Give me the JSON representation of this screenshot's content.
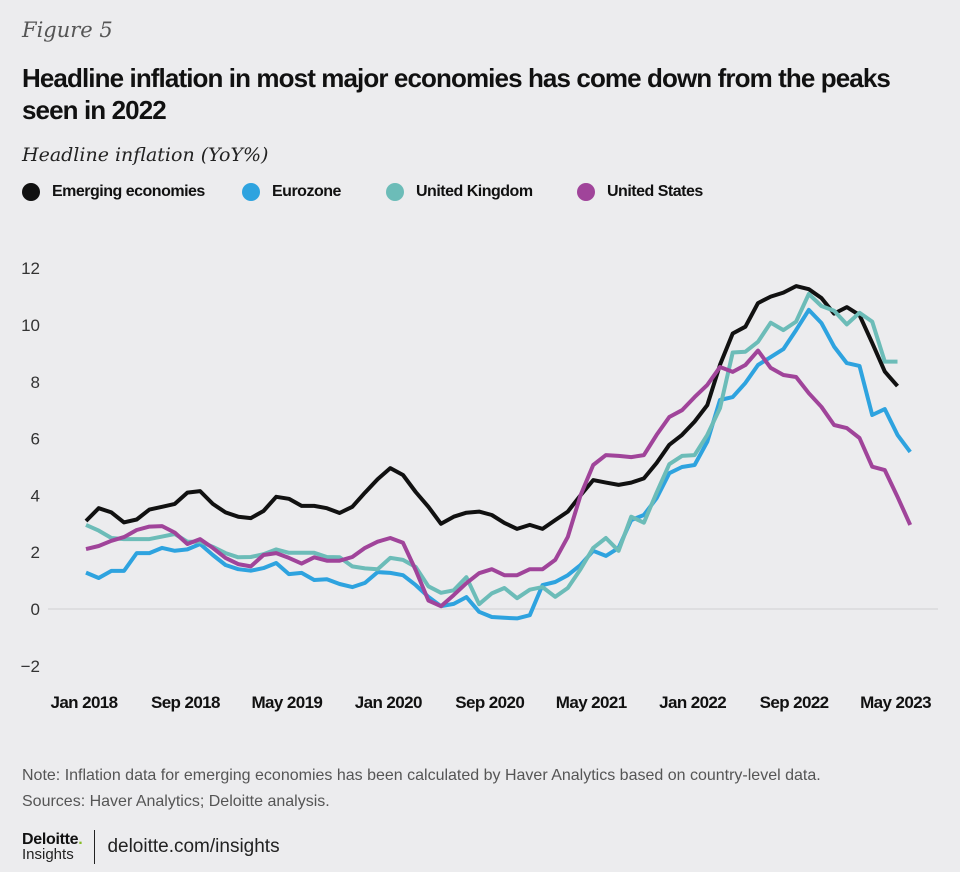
{
  "figure_label": "Figure 5",
  "title": "Headline inflation in most major economies has come down from the peaks seen in 2022",
  "subtitle": "Headline inflation (YoY%)",
  "note": "Note: Inflation data for emerging economies has been calculated by Haver Analytics based on country-level data.",
  "sources": "Sources: Haver Analytics; Deloitte analysis.",
  "footer": {
    "brand_name": "Deloitte",
    "brand_dot": ".",
    "brand_sub": "Insights",
    "url": "deloitte.com/insights"
  },
  "chart_data": {
    "type": "line",
    "title": "Headline inflation in most major economies has come down from the peaks seen in 2022",
    "ylabel": "Headline inflation (YoY%)",
    "xlabel": "",
    "ylim": [
      -2,
      12
    ],
    "yticks": [
      12,
      10,
      8,
      6,
      4,
      2,
      0,
      -2
    ],
    "x_start": "Jan 2018",
    "x_frequency": "monthly",
    "xtick_labels": [
      "Jan 2018",
      "Sep 2018",
      "May 2019",
      "Jan 2020",
      "Sep 2020",
      "May 2021",
      "Jan 2022",
      "Sep 2022",
      "May 2023"
    ],
    "xtick_month_index": [
      0,
      8,
      16,
      24,
      32,
      40,
      48,
      56,
      64
    ],
    "grid": false,
    "zero_line": true,
    "legend_position": "top-left",
    "series": [
      {
        "name": "Emerging economies",
        "color": "#111111",
        "values": [
          3.1,
          3.55,
          3.4,
          3.05,
          3.15,
          3.5,
          3.6,
          3.7,
          4.1,
          4.15,
          3.7,
          3.4,
          3.25,
          3.2,
          3.45,
          3.95,
          3.88,
          3.63,
          3.63,
          3.55,
          3.38,
          3.6,
          4.1,
          4.57,
          4.96,
          4.72,
          4.12,
          3.6,
          3.0,
          3.25,
          3.39,
          3.43,
          3.31,
          3.03,
          2.82,
          2.96,
          2.82,
          3.13,
          3.43,
          4.0,
          4.54,
          4.45,
          4.37,
          4.45,
          4.6,
          5.14,
          5.78,
          6.13,
          6.6,
          7.18,
          8.6,
          9.7,
          9.94,
          10.77,
          11.0,
          11.14,
          11.37,
          11.26,
          10.95,
          10.4,
          10.63,
          10.35,
          9.37,
          8.36,
          7.85
        ]
      },
      {
        "name": "Eurozone",
        "color": "#2ea3df",
        "values": [
          1.28,
          1.09,
          1.34,
          1.34,
          1.97,
          1.97,
          2.15,
          2.05,
          2.1,
          2.29,
          1.9,
          1.55,
          1.4,
          1.35,
          1.44,
          1.62,
          1.23,
          1.27,
          1.02,
          1.05,
          0.88,
          0.77,
          0.92,
          1.3,
          1.27,
          1.19,
          0.84,
          0.43,
          0.1,
          0.18,
          0.42,
          -0.1,
          -0.28,
          -0.31,
          -0.33,
          -0.22,
          0.84,
          0.95,
          1.19,
          1.55,
          2.05,
          1.87,
          2.15,
          3.13,
          3.31,
          3.9,
          4.78,
          5.0,
          5.07,
          5.89,
          7.36,
          7.46,
          7.96,
          8.59,
          8.87,
          9.15,
          9.82,
          10.53,
          10.07,
          9.24,
          8.66,
          8.56,
          6.83,
          7.04,
          6.13,
          5.53
        ]
      },
      {
        "name": "United Kingdom",
        "color": "#6cbcb8",
        "values": [
          2.96,
          2.76,
          2.5,
          2.46,
          2.46,
          2.46,
          2.55,
          2.64,
          2.37,
          2.37,
          2.19,
          1.97,
          1.82,
          1.83,
          1.93,
          2.1,
          1.98,
          1.98,
          1.98,
          1.83,
          1.82,
          1.5,
          1.43,
          1.4,
          1.8,
          1.73,
          1.48,
          0.8,
          0.57,
          0.66,
          1.12,
          0.17,
          0.55,
          0.74,
          0.38,
          0.68,
          0.77,
          0.43,
          0.74,
          1.4,
          2.15,
          2.5,
          2.05,
          3.25,
          3.04,
          4.1,
          5.1,
          5.39,
          5.42,
          6.13,
          7.07,
          9.03,
          9.06,
          9.41,
          10.08,
          9.82,
          10.12,
          11.09,
          10.67,
          10.5,
          10.02,
          10.43,
          10.12,
          8.71,
          8.71
        ]
      },
      {
        "name": "United States",
        "color": "#a0449a",
        "values": [
          2.11,
          2.22,
          2.4,
          2.53,
          2.78,
          2.9,
          2.92,
          2.69,
          2.29,
          2.46,
          2.15,
          1.8,
          1.58,
          1.5,
          1.9,
          1.97,
          1.8,
          1.6,
          1.82,
          1.7,
          1.7,
          1.83,
          2.15,
          2.37,
          2.5,
          2.33,
          1.37,
          0.3,
          0.1,
          0.49,
          0.91,
          1.26,
          1.4,
          1.19,
          1.19,
          1.4,
          1.4,
          1.73,
          2.54,
          4.0,
          5.07,
          5.42,
          5.39,
          5.35,
          5.42,
          6.13,
          6.76,
          7.0,
          7.46,
          7.89,
          8.52,
          8.35,
          8.59,
          9.1,
          8.49,
          8.24,
          8.17,
          7.6,
          7.12,
          6.48,
          6.37,
          6.02,
          5.01,
          4.89,
          3.95,
          2.96
        ]
      }
    ]
  }
}
